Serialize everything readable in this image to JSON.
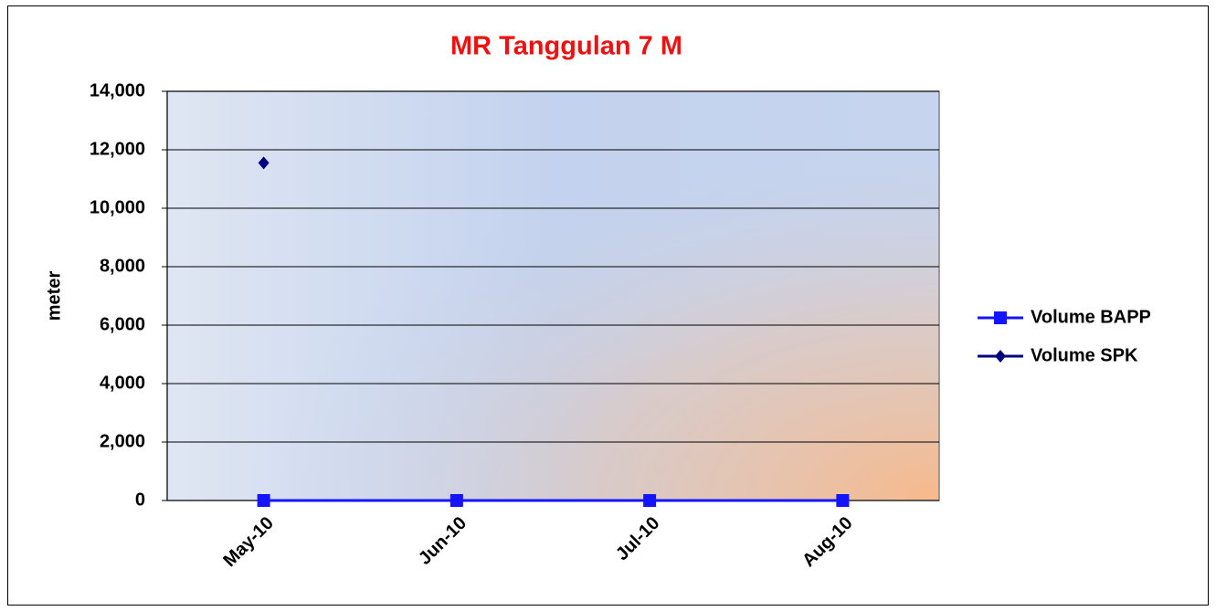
{
  "chart_data": {
    "type": "line",
    "title": "MR Tanggulan 7 M",
    "y_label": "meter",
    "categories": [
      "May-10",
      "Jun-10",
      "Jul-10",
      "Aug-10"
    ],
    "series": [
      {
        "name": "Volume BAPP",
        "color": "#1414ff",
        "marker": "square",
        "values": [
          0,
          0,
          0,
          0
        ]
      },
      {
        "name": "Volume SPK",
        "color": "#000080",
        "marker": "diamond",
        "values": [
          11550,
          null,
          null,
          null
        ]
      }
    ],
    "ylim": [
      0,
      14000
    ],
    "yticks": [
      0,
      {
        "value": 2000,
        "label": "2,000"
      },
      {
        "value": 4000,
        "label": "4,000"
      },
      {
        "value": 6000,
        "label": "6,000"
      },
      {
        "value": 8000,
        "label": "8,000"
      },
      {
        "value": 10000,
        "label": "10,000"
      },
      {
        "value": 12000,
        "label": "12,000"
      },
      {
        "value": 14000,
        "label": "14,000"
      }
    ],
    "grid": true,
    "legend": "right"
  }
}
